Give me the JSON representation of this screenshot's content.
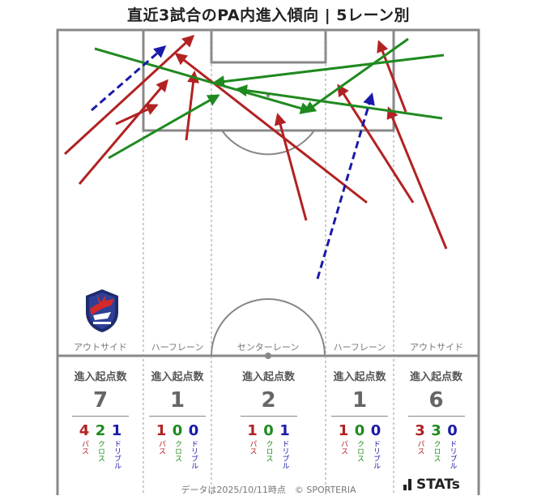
{
  "title": "直近3試合のPA内進入傾向 | 5レーン別",
  "lanes": [
    {
      "label": "アウトサイド",
      "head": "進入起点数",
      "total": "7",
      "pass": "4",
      "cross": "2",
      "dribble": "1"
    },
    {
      "label": "ハーフレーン",
      "head": "進入起点数",
      "total": "1",
      "pass": "1",
      "cross": "0",
      "dribble": "0"
    },
    {
      "label": "センターレーン",
      "head": "進入起点数",
      "total": "2",
      "pass": "1",
      "cross": "0",
      "dribble": "1"
    },
    {
      "label": "ハーフレーン",
      "head": "進入起点数",
      "total": "1",
      "pass": "1",
      "cross": "0",
      "dribble": "0"
    },
    {
      "label": "アウトサイド",
      "head": "進入起点数",
      "total": "6",
      "pass": "3",
      "cross": "3",
      "dribble": "0"
    }
  ],
  "breakdown_labels": {
    "pass": "パス",
    "cross": "クロス",
    "dribble": "ドリブル"
  },
  "colors": {
    "pass": "#b22222",
    "cross": "#1f8a1f",
    "dribble": "#1a1aaa",
    "pitch_line": "#888888"
  },
  "footer": "データは2025/10/11時点　© SPORTERIA",
  "brand": "STATs",
  "logo_icon": "club-crest-icon"
}
